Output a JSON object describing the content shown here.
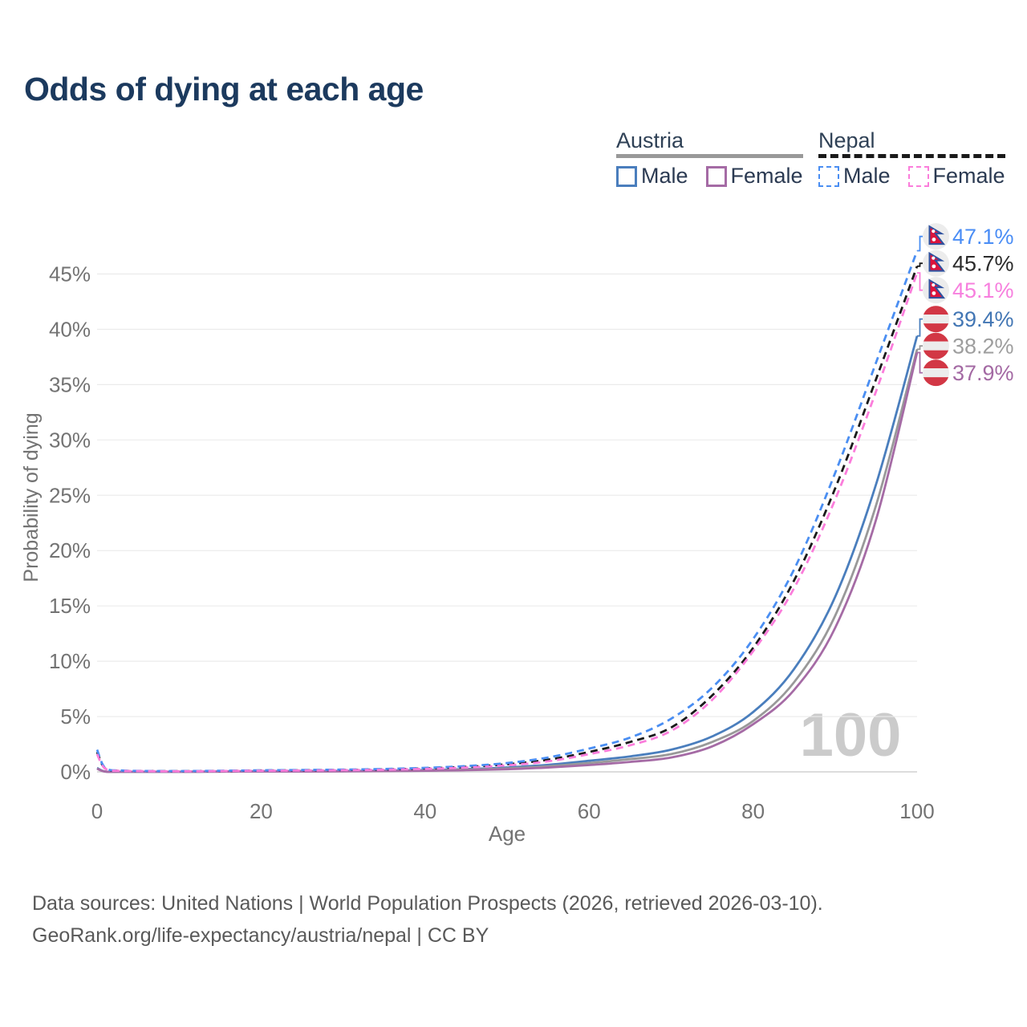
{
  "title": "Odds of dying at each age",
  "legend": {
    "austria": {
      "label": "Austria",
      "male_label": "Male",
      "female_label": "Female"
    },
    "nepal": {
      "label": "Nepal",
      "male_label": "Male",
      "female_label": "Female"
    }
  },
  "footer": {
    "line1": "Data sources: United Nations | World Population Prospects (2026, retrieved 2026-03-10).",
    "line2": "GeoRank.org/life-expectancy/austria/nepal | CC BY"
  },
  "colors": {
    "title": "#1c3a5e",
    "axis_text": "#737373",
    "grid": "#ebebeb",
    "baseline": "#d0d0d0",
    "watermark": "#cbcbcb",
    "footer_text": "#595959",
    "legend_text": "#2b3a52",
    "austria_male": "#4a7ebd",
    "austria_female": "#a56ba5",
    "austria_all": "#999999",
    "nepal_male": "#4a8ef2",
    "nepal_female": "#fb7ddb",
    "nepal_all": "#1a1a1a",
    "flag_red_austria": "#d23745",
    "flag_red_nepal": "#dc143c",
    "flag_blue_nepal": "#2e52a0",
    "flag_circle_bg": "#ececec"
  },
  "chart_data": {
    "type": "line",
    "title": "Odds of dying at each age",
    "xlabel": "Age",
    "ylabel": "Probability of dying",
    "xlim": [
      0,
      100
    ],
    "ylim_percent": [
      0,
      48
    ],
    "x_ticks": [
      0,
      20,
      40,
      60,
      80,
      100
    ],
    "y_ticks_percent": [
      0,
      5,
      10,
      15,
      20,
      25,
      30,
      35,
      40,
      45
    ],
    "grid": "horizontal gridlines on",
    "legend_position": "top-right",
    "hover_age_watermark": "100",
    "ages": [
      0,
      1,
      3,
      5,
      10,
      15,
      20,
      25,
      30,
      35,
      40,
      45,
      50,
      55,
      60,
      65,
      70,
      75,
      80,
      85,
      90,
      95,
      100
    ],
    "series": [
      {
        "name": "Austria Male",
        "country": "Austria",
        "sex": "Male",
        "line_style": "solid",
        "color": "#4a7ebd",
        "label_color": "#4276b4",
        "flag": "austria",
        "end_label": "39.4%",
        "end_value_percent": 39.4,
        "values_percent": [
          0.35,
          0.03,
          0.01,
          0.01,
          0.01,
          0.03,
          0.06,
          0.07,
          0.08,
          0.11,
          0.16,
          0.25,
          0.4,
          0.63,
          1.0,
          1.4,
          2.0,
          3.2,
          5.4,
          9.3,
          15.8,
          26.0,
          39.4
        ]
      },
      {
        "name": "Austria Total",
        "country": "Austria",
        "sex": "All",
        "line_style": "solid",
        "color": "#999999",
        "label_color": "#9e9e9e",
        "flag": "austria",
        "end_label": "38.2%",
        "end_value_percent": 38.2,
        "values_percent": [
          0.3,
          0.03,
          0.01,
          0.01,
          0.01,
          0.02,
          0.04,
          0.05,
          0.06,
          0.09,
          0.13,
          0.2,
          0.32,
          0.51,
          0.8,
          1.15,
          1.6,
          2.7,
          4.6,
          8.1,
          14.1,
          24.1,
          38.2
        ]
      },
      {
        "name": "Austria Female",
        "country": "Austria",
        "sex": "Female",
        "line_style": "solid",
        "color": "#a56ba5",
        "label_color": "#a369a3",
        "flag": "austria",
        "end_label": "37.9%",
        "end_value_percent": 37.9,
        "values_percent": [
          0.28,
          0.02,
          0.01,
          0.01,
          0.01,
          0.02,
          0.03,
          0.03,
          0.04,
          0.07,
          0.1,
          0.15,
          0.24,
          0.39,
          0.62,
          0.9,
          1.3,
          2.3,
          4.3,
          7.4,
          13.0,
          22.8,
          37.9
        ]
      },
      {
        "name": "Nepal Total",
        "country": "Nepal",
        "sex": "All",
        "line_style": "dashed",
        "color": "#1a1a1a",
        "label_color": "#2b2b2b",
        "flag": "nepal",
        "end_label": "45.7%",
        "end_value_percent": 45.7,
        "values_percent": [
          1.8,
          0.3,
          0.1,
          0.08,
          0.06,
          0.08,
          0.12,
          0.14,
          0.17,
          0.22,
          0.31,
          0.45,
          0.68,
          1.1,
          1.8,
          2.7,
          4.0,
          6.9,
          11.2,
          17.3,
          25.6,
          35.5,
          45.7
        ]
      },
      {
        "name": "Nepal Male",
        "country": "Nepal",
        "sex": "Male",
        "line_style": "dashed",
        "color": "#4a8ef2",
        "label_color": "#4a8df5",
        "flag": "nepal",
        "end_label": "47.1%",
        "end_value_percent": 47.1,
        "values_percent": [
          2.0,
          0.35,
          0.12,
          0.09,
          0.07,
          0.1,
          0.14,
          0.17,
          0.2,
          0.26,
          0.36,
          0.52,
          0.8,
          1.3,
          2.1,
          3.1,
          4.8,
          7.6,
          12.0,
          18.3,
          27.0,
          37.0,
          47.1
        ]
      },
      {
        "name": "Nepal Female",
        "country": "Nepal",
        "sex": "Female",
        "line_style": "dashed",
        "color": "#fb7ddb",
        "label_color": "#f77fde",
        "flag": "nepal",
        "end_label": "45.1%",
        "end_value_percent": 45.1,
        "values_percent": [
          1.6,
          0.28,
          0.09,
          0.07,
          0.05,
          0.07,
          0.1,
          0.12,
          0.15,
          0.19,
          0.27,
          0.39,
          0.59,
          0.95,
          1.6,
          2.4,
          3.7,
          6.5,
          10.9,
          16.6,
          24.6,
          34.4,
          45.1
        ]
      }
    ]
  }
}
